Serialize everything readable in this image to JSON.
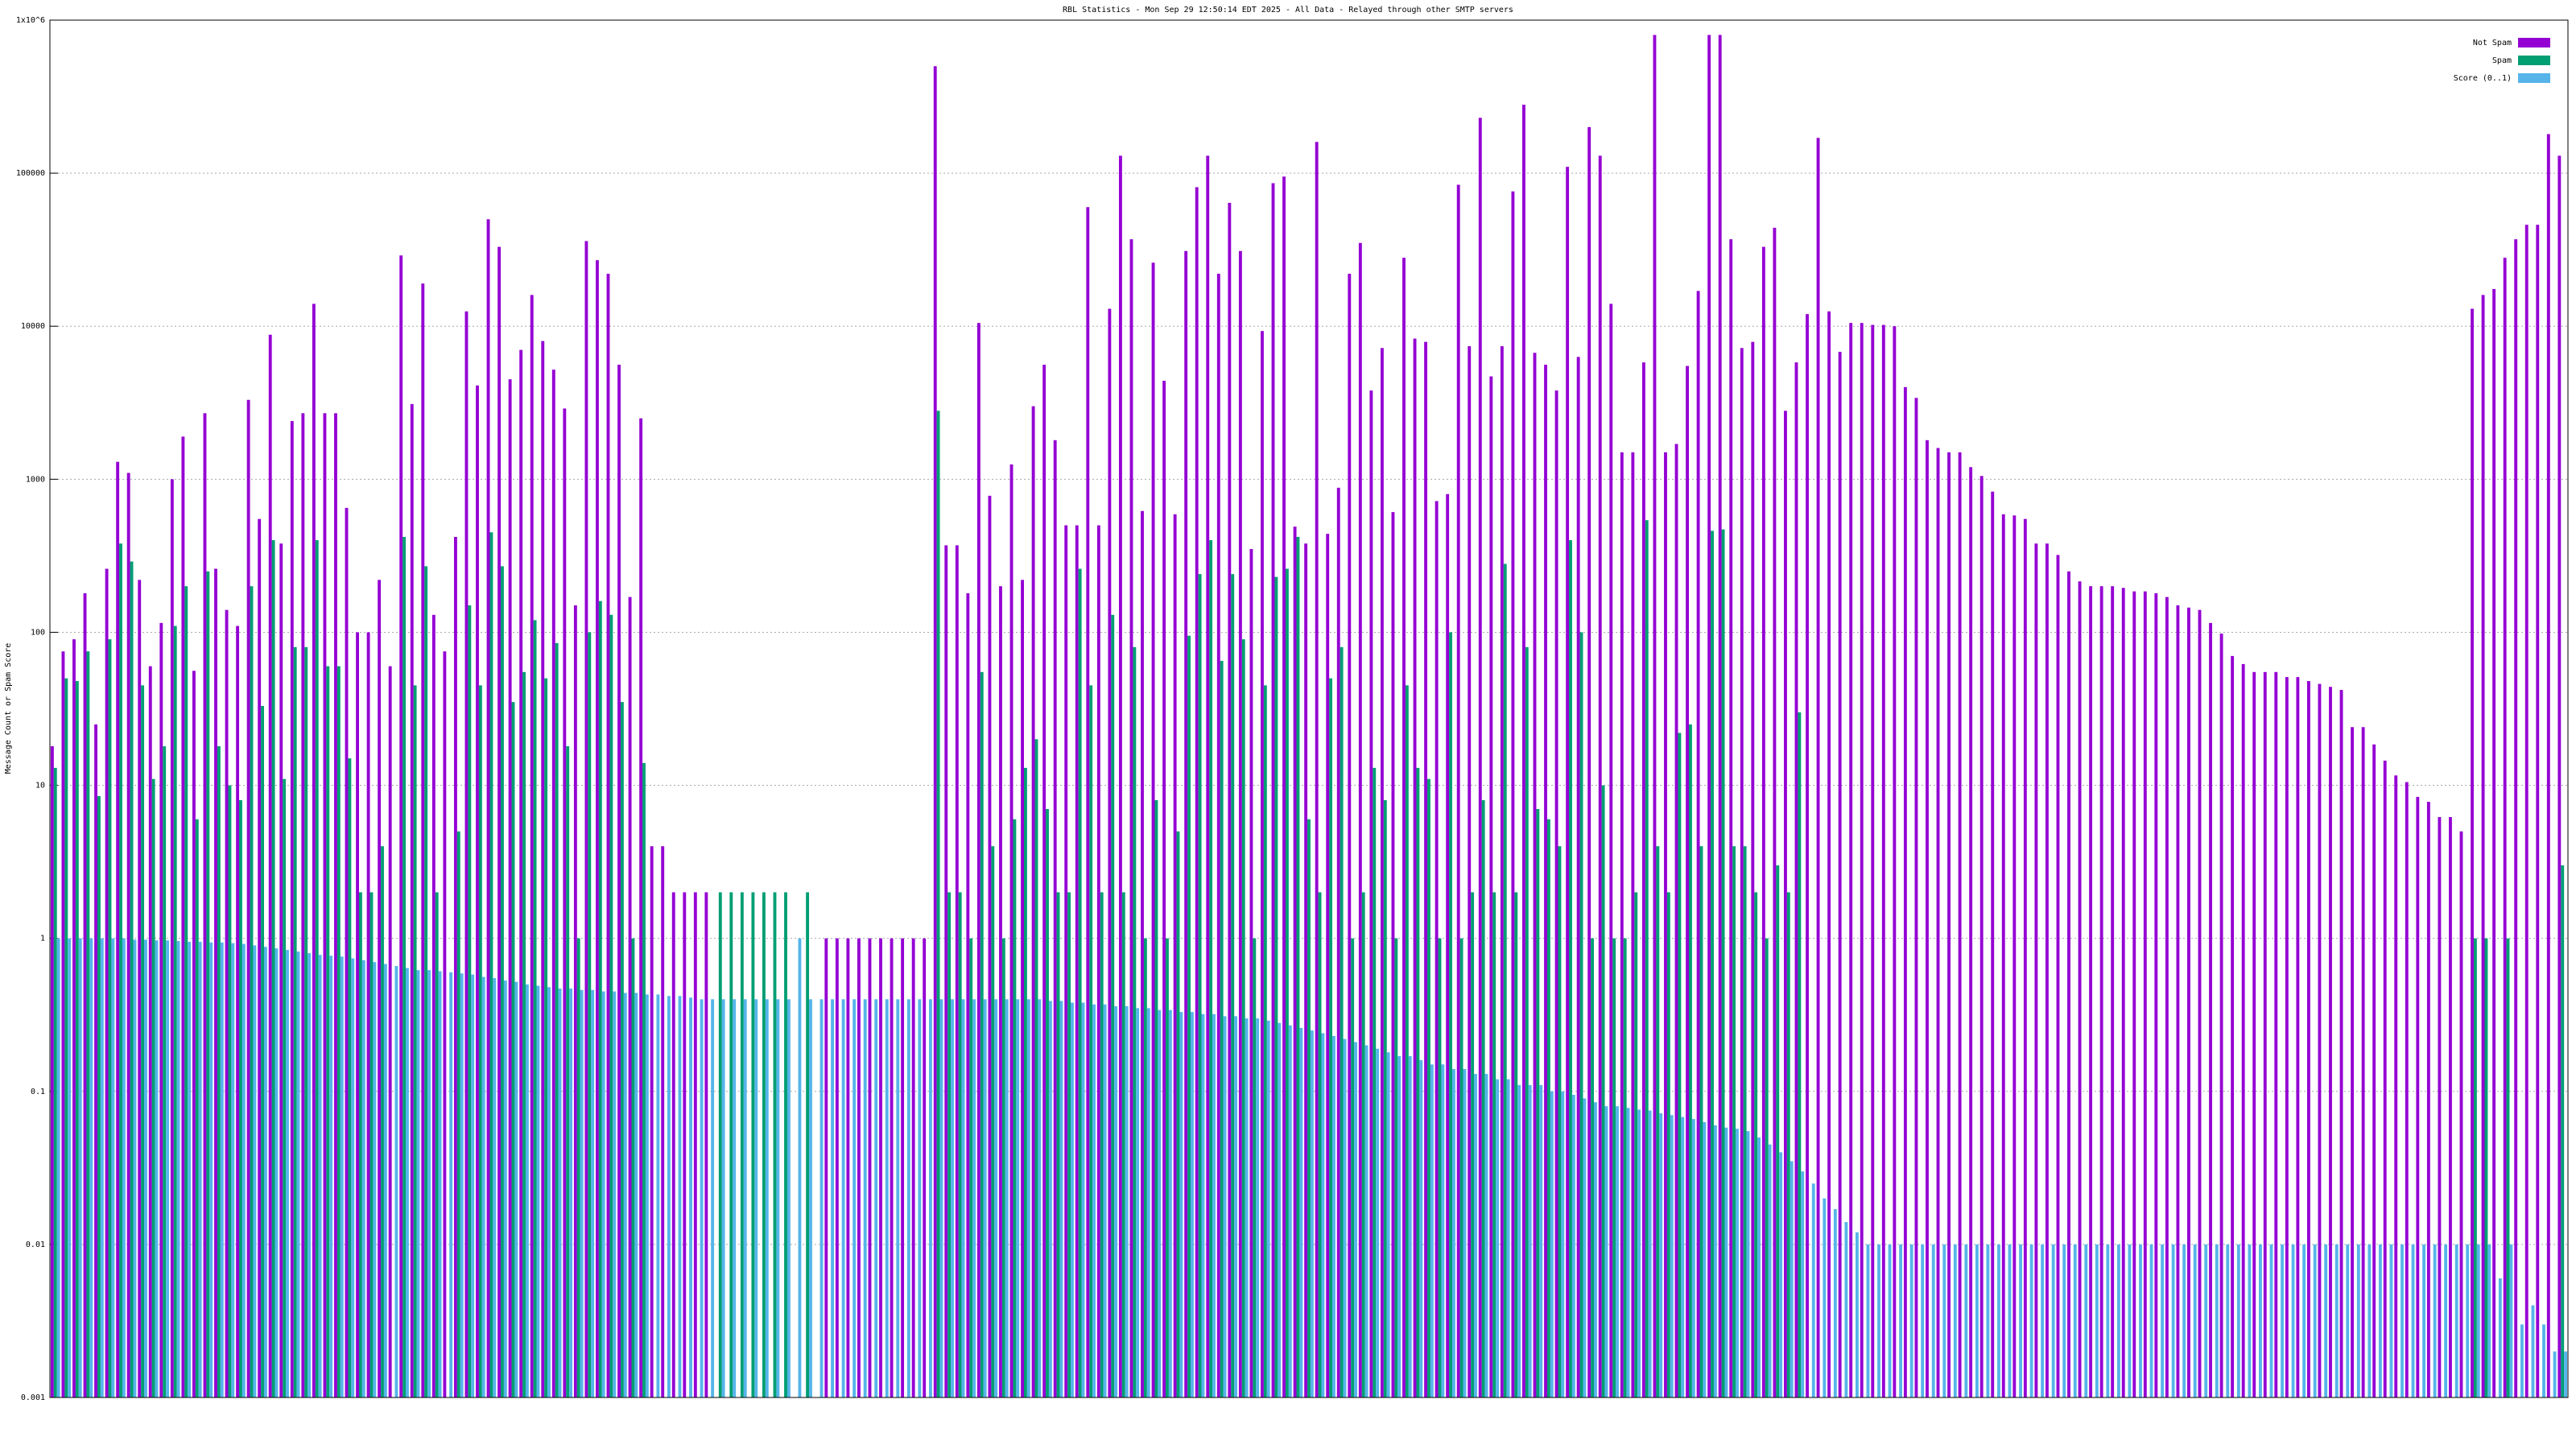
{
  "chart_data": {
    "type": "bar",
    "title": "RBL Statistics - Mon Sep 29 12:50:14 EDT 2025 - All Data - Relayed through other SMTP servers",
    "y_label": "Message Count or Spam Score",
    "ylog": true,
    "grid": true,
    "legend": "top right",
    "ylim": [
      0.001,
      1000000
    ],
    "yticks": [
      0.001,
      0.01,
      0.1,
      1,
      10,
      100,
      1000,
      10000,
      100000,
      {
        "value": 1000000,
        "label": "1x10^6"
      }
    ],
    "series": [
      {
        "name": "Not Spam",
        "color": "#9400d3",
        "values": [
          18,
          75,
          90,
          180,
          25,
          260,
          1300,
          1100,
          220,
          60,
          115,
          1000,
          1900,
          56,
          2700,
          260,
          140,
          110,
          3300,
          550,
          8800,
          380,
          2400,
          2700,
          14000,
          2700,
          2700,
          650,
          100,
          100,
          220,
          60,
          29000,
          3100,
          19000,
          130,
          75,
          420,
          12500,
          4100,
          50000,
          33000,
          4500,
          7000,
          16000,
          8000,
          5200,
          2900,
          150,
          36000,
          27000,
          22000,
          5600,
          170,
          2500,
          4,
          4,
          2,
          2,
          2,
          2,
          null,
          null,
          null,
          null,
          null,
          null,
          null,
          null,
          null,
          null,
          1,
          1,
          1,
          1,
          1,
          1,
          1,
          1,
          1,
          1,
          500000,
          370,
          370,
          180,
          10500,
          780,
          200,
          1250,
          220,
          3000,
          5600,
          1800,
          500,
          500,
          60000,
          500,
          13000,
          130000,
          37000,
          620,
          26000,
          4400,
          590,
          31000,
          81000,
          130000,
          22000,
          64000,
          31000,
          350,
          9300,
          86000,
          95000,
          490,
          380,
          160000,
          440,
          880,
          22000,
          35000,
          3800,
          7200,
          610,
          28000,
          8300,
          7900,
          720,
          800,
          84000,
          7400,
          230000,
          4700,
          7400,
          76000,
          280000,
          6700,
          5600,
          3800,
          110000,
          6300,
          200000,
          130000,
          14000,
          1500,
          1500,
          5800,
          800000,
          1500,
          1700,
          5500,
          17000,
          800000,
          800000,
          37000,
          7200,
          7900,
          33000,
          44000,
          2800,
          5800,
          12000,
          170000,
          12500,
          6800,
          10500,
          10500,
          10200,
          10200,
          10000,
          4000,
          3400,
          1800,
          1600,
          1500,
          1500,
          1200,
          1050,
          830,
          590,
          580,
          550,
          380,
          380,
          320,
          250,
          215,
          200,
          200,
          200,
          195,
          185,
          185,
          180,
          170,
          150,
          145,
          140,
          115,
          98,
          70,
          62,
          55,
          55,
          55,
          51,
          51,
          48,
          46,
          44,
          42,
          24,
          24,
          18.5,
          14.5,
          11.6,
          10.5,
          8.4,
          7.8,
          6.2,
          6.2,
          5,
          13000,
          16000,
          17500,
          28000,
          37000,
          46000,
          46000,
          180000,
          130000
        ]
      },
      {
        "name": "Spam",
        "color": "#009e73",
        "values": [
          13,
          50,
          48,
          75,
          8.5,
          90,
          380,
          290,
          45,
          11,
          18,
          110,
          200,
          6,
          250,
          18,
          10,
          8,
          200,
          33,
          400,
          11,
          80,
          80,
          400,
          60,
          60,
          15,
          2,
          2,
          4,
          null,
          420,
          45,
          270,
          2,
          null,
          5,
          150,
          45,
          450,
          270,
          35,
          55,
          120,
          50,
          85,
          18,
          1,
          100,
          160,
          130,
          35,
          1,
          14,
          null,
          null,
          null,
          null,
          null,
          null,
          2,
          2,
          2,
          2,
          2,
          2,
          2,
          null,
          2,
          null,
          null,
          null,
          null,
          null,
          null,
          null,
          null,
          null,
          null,
          null,
          2800,
          2,
          2,
          1,
          55,
          4,
          1,
          6,
          13,
          20,
          7,
          2,
          2,
          260,
          45,
          2,
          130,
          2,
          80,
          1,
          8,
          1,
          5,
          95,
          240,
          400,
          65,
          240,
          90,
          1,
          45,
          230,
          260,
          420,
          6,
          2,
          50,
          80,
          1,
          2,
          13,
          8,
          1,
          45,
          13,
          11,
          1,
          100,
          1,
          2,
          8,
          2,
          280,
          2,
          80,
          7,
          6,
          4,
          400,
          100,
          1,
          10,
          1,
          1,
          2,
          540,
          4,
          2,
          22,
          25,
          4,
          460,
          470,
          4,
          4,
          2,
          1,
          3,
          2,
          30,
          null,
          null,
          null,
          null,
          null,
          null,
          null,
          null,
          null,
          null,
          null,
          null,
          null,
          null,
          null,
          null,
          null,
          null,
          null,
          null,
          null,
          null,
          null,
          null,
          null,
          null,
          null,
          null,
          null,
          null,
          null,
          null,
          null,
          null,
          null,
          null,
          null,
          null,
          null,
          null,
          null,
          null,
          null,
          null,
          null,
          null,
          null,
          null,
          null,
          null,
          null,
          null,
          null,
          null,
          null,
          null,
          null,
          null,
          null,
          null,
          null,
          1,
          1,
          null,
          1,
          null,
          null,
          null,
          null,
          3
        ]
      },
      {
        "name": "Score (0..1)",
        "color": "#56b4e9",
        "values": [
          1,
          1,
          1,
          1,
          1,
          1,
          1,
          0.98,
          0.98,
          0.97,
          0.97,
          0.96,
          0.95,
          0.95,
          0.94,
          0.94,
          0.93,
          0.92,
          0.9,
          0.88,
          0.86,
          0.84,
          0.82,
          0.8,
          0.78,
          0.77,
          0.76,
          0.74,
          0.72,
          0.7,
          0.68,
          0.66,
          0.64,
          0.62,
          0.62,
          0.61,
          0.6,
          0.59,
          0.58,
          0.56,
          0.55,
          0.53,
          0.52,
          0.5,
          0.49,
          0.48,
          0.47,
          0.47,
          0.46,
          0.46,
          0.45,
          0.45,
          0.44,
          0.44,
          0.43,
          0.43,
          0.42,
          0.42,
          0.41,
          0.4,
          0.4,
          0.4,
          0.4,
          0.4,
          0.4,
          0.4,
          0.4,
          0.4,
          1,
          0.4,
          0.4,
          0.4,
          0.4,
          0.4,
          0.4,
          0.4,
          0.4,
          0.4,
          0.4,
          0.4,
          0.4,
          0.4,
          0.4,
          0.4,
          0.4,
          0.4,
          0.4,
          0.4,
          0.4,
          0.4,
          0.4,
          0.39,
          0.39,
          0.38,
          0.38,
          0.37,
          0.37,
          0.36,
          0.36,
          0.35,
          0.35,
          0.34,
          0.34,
          0.33,
          0.33,
          0.32,
          0.32,
          0.31,
          0.31,
          0.3,
          0.3,
          0.29,
          0.28,
          0.27,
          0.26,
          0.25,
          0.24,
          0.23,
          0.22,
          0.21,
          0.2,
          0.19,
          0.18,
          0.17,
          0.17,
          0.16,
          0.15,
          0.15,
          0.14,
          0.14,
          0.13,
          0.13,
          0.12,
          0.12,
          0.11,
          0.11,
          0.11,
          0.1,
          0.1,
          0.095,
          0.09,
          0.085,
          0.08,
          0.08,
          0.078,
          0.076,
          0.075,
          0.072,
          0.07,
          0.068,
          0.066,
          0.063,
          0.06,
          0.058,
          0.057,
          0.055,
          0.05,
          0.045,
          0.04,
          0.035,
          0.03,
          0.025,
          0.02,
          0.017,
          0.014,
          0.012,
          0.01,
          0.01,
          0.01,
          0.01,
          0.01,
          0.01,
          0.01,
          0.01,
          0.01,
          0.01,
          0.01,
          0.01,
          0.01,
          0.01,
          0.01,
          0.01,
          0.01,
          0.01,
          0.01,
          0.01,
          0.01,
          0.01,
          0.01,
          0.01,
          0.01,
          0.01,
          0.01,
          0.01,
          0.01,
          0.01,
          0.01,
          0.01,
          0.01,
          0.01,
          0.01,
          0.01,
          0.01,
          0.01,
          0.01,
          0.01,
          0.01,
          0.01,
          0.01,
          0.01,
          0.01,
          0.01,
          0.01,
          0.01,
          0.01,
          0.01,
          0.01,
          0.01,
          0.01,
          0.01,
          0.01,
          0.01,
          0.01,
          0.01,
          0.006,
          0.01,
          0.003,
          0.004,
          0.003,
          0.002,
          0.002
        ]
      }
    ]
  }
}
